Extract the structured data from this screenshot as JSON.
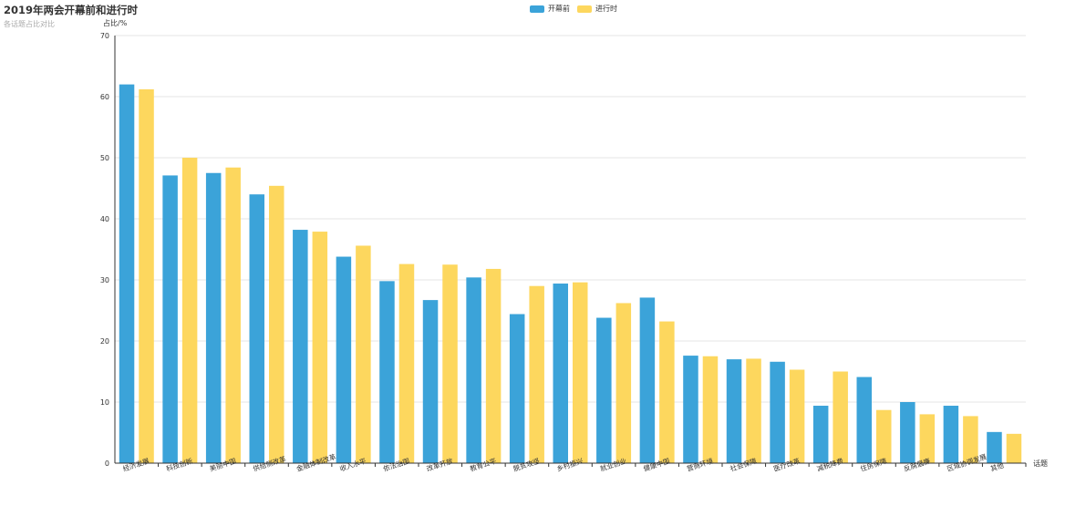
{
  "title": "2019年两会开幕前和进行时",
  "subtitle": "各话题占比对比",
  "colors": {
    "before": "#3ba3d9",
    "during": "#fdd75e",
    "grid": "#e6e6e6",
    "axis": "#333333"
  },
  "chart_data": {
    "type": "bar",
    "title": "2019年两会开幕前和进行时",
    "subtitle": "各话题占比对比",
    "xlabel": "话题",
    "ylabel": "占比/%",
    "ylim": [
      0,
      70
    ],
    "yticks": [
      "0",
      "10",
      "20",
      "30",
      "40",
      "50",
      "60",
      "70"
    ],
    "grid": true,
    "legend_position": "top-center",
    "categories": [
      "经济发展",
      "科技创新",
      "美丽中国",
      "供给侧改革",
      "金融体制改革",
      "收入水平",
      "依法治国",
      "改革开放",
      "教育公平",
      "脱贫攻坚",
      "乡村振兴",
      "就业创业",
      "健康中国",
      "营商环境",
      "社会保障",
      "医疗改革",
      "减税降费",
      "住房保障",
      "反腐倡廉",
      "区域协调发展",
      "其他"
    ],
    "series": [
      {
        "name": "开幕前",
        "values": [
          62.0,
          47.1,
          47.5,
          44.0,
          38.2,
          33.8,
          29.8,
          26.7,
          30.4,
          24.4,
          29.4,
          23.8,
          27.1,
          17.6,
          17.0,
          16.6,
          9.4,
          14.1,
          10.0,
          9.4,
          5.1
        ]
      },
      {
        "name": "进行时",
        "values": [
          61.2,
          50.0,
          48.4,
          45.4,
          37.9,
          35.6,
          32.6,
          32.5,
          31.8,
          29.0,
          29.6,
          26.2,
          23.2,
          17.5,
          17.1,
          15.3,
          15.0,
          8.7,
          8.0,
          7.7,
          4.8
        ]
      }
    ]
  }
}
